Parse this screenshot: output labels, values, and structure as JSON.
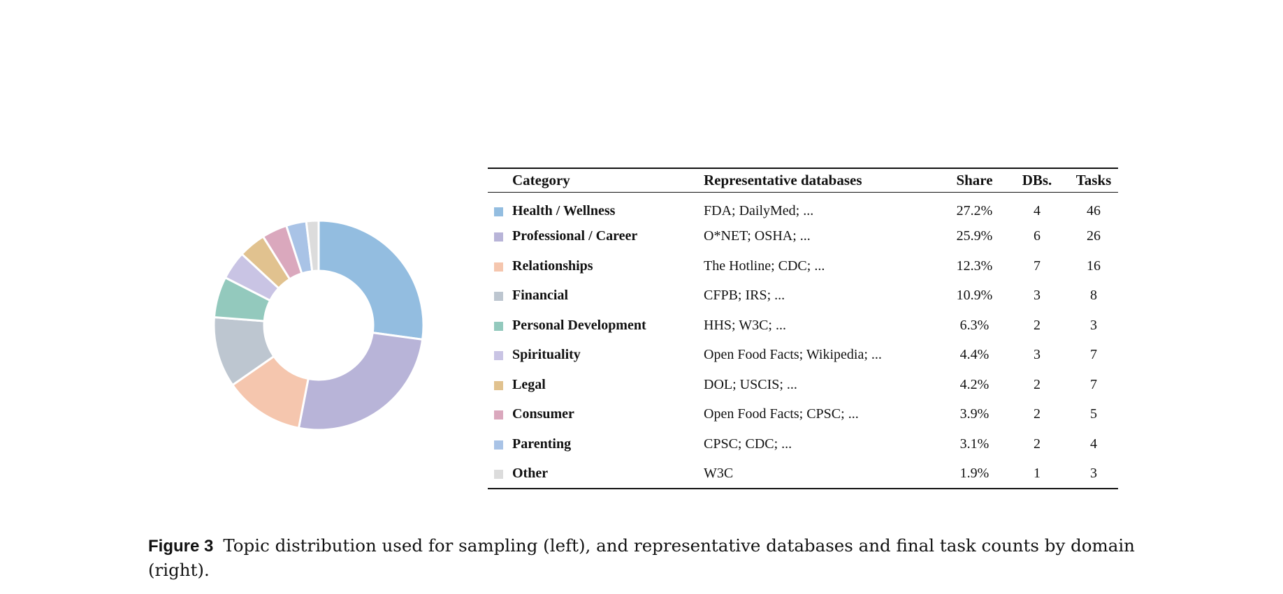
{
  "chart_data": {
    "type": "pie",
    "donut": true,
    "categories": [
      "Health / Wellness",
      "Professional / Career",
      "Relationships",
      "Financial",
      "Personal Development",
      "Spirituality",
      "Legal",
      "Consumer",
      "Parenting",
      "Other"
    ],
    "values": [
      27.2,
      25.9,
      12.3,
      10.9,
      6.3,
      4.4,
      4.2,
      3.9,
      3.1,
      1.9
    ],
    "colors": [
      "#93bde0",
      "#b8b4d8",
      "#f5c6ae",
      "#bdc6d0",
      "#93c9bd",
      "#c9c4e4",
      "#e1c28f",
      "#daa8bd",
      "#a9c3e6",
      "#dcdcdc"
    ],
    "start": "top, clockwise"
  },
  "table": {
    "headers": {
      "category": "Category",
      "databases": "Representative databases",
      "share": "Share",
      "dbs": "DBs.",
      "tasks": "Tasks"
    },
    "rows": [
      {
        "category": "Health / Wellness",
        "databases": "FDA; DailyMed; ...",
        "share": "27.2%",
        "dbs": "4",
        "tasks": "46",
        "color": "#93bde0"
      },
      {
        "category": "Professional / Career",
        "databases": "O*NET; OSHA; ...",
        "share": "25.9%",
        "dbs": "6",
        "tasks": "26",
        "color": "#b8b4d8"
      },
      {
        "category": "Relationships",
        "databases": "The Hotline; CDC; ...",
        "share": "12.3%",
        "dbs": "7",
        "tasks": "16",
        "color": "#f5c6ae"
      },
      {
        "category": "Financial",
        "databases": "CFPB; IRS; ...",
        "share": "10.9%",
        "dbs": "3",
        "tasks": "8",
        "color": "#bdc6d0"
      },
      {
        "category": "Personal Development",
        "databases": "HHS; W3C; ...",
        "share": "6.3%",
        "dbs": "2",
        "tasks": "3",
        "color": "#93c9bd"
      },
      {
        "category": "Spirituality",
        "databases": "Open Food Facts; Wikipedia; ...",
        "share": "4.4%",
        "dbs": "3",
        "tasks": "7",
        "color": "#c9c4e4"
      },
      {
        "category": "Legal",
        "databases": "DOL; USCIS; ...",
        "share": "4.2%",
        "dbs": "2",
        "tasks": "7",
        "color": "#e1c28f"
      },
      {
        "category": "Consumer",
        "databases": "Open Food Facts; CPSC; ...",
        "share": "3.9%",
        "dbs": "2",
        "tasks": "5",
        "color": "#daa8bd"
      },
      {
        "category": "Parenting",
        "databases": "CPSC; CDC; ...",
        "share": "3.1%",
        "dbs": "2",
        "tasks": "4",
        "color": "#a9c3e6"
      },
      {
        "category": "Other",
        "databases": "W3C",
        "share": "1.9%",
        "dbs": "1",
        "tasks": "3",
        "color": "#dcdcdc"
      }
    ]
  },
  "caption": {
    "label": "Figure 3",
    "text": "Topic distribution used for sampling (left), and representative databases and final task counts by domain (right)."
  }
}
